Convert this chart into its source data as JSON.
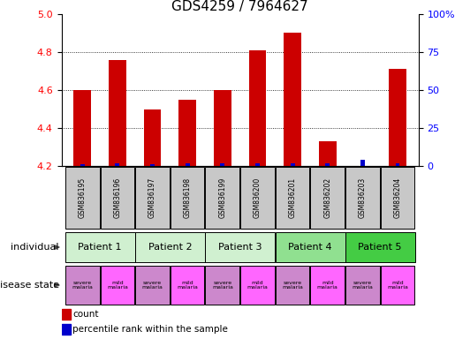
{
  "title": "GDS4259 / 7964627",
  "samples": [
    "GSM836195",
    "GSM836196",
    "GSM836197",
    "GSM836198",
    "GSM836199",
    "GSM836200",
    "GSM836201",
    "GSM836202",
    "GSM836203",
    "GSM836204"
  ],
  "count_values": [
    4.6,
    4.76,
    4.5,
    4.55,
    4.6,
    4.81,
    4.9,
    4.33,
    4.2,
    4.71
  ],
  "percentile_values": [
    1,
    2,
    1,
    2,
    2,
    2,
    2,
    2,
    4,
    2
  ],
  "ylim_left": [
    4.2,
    5.0
  ],
  "ylim_right": [
    0,
    100
  ],
  "yticks_left": [
    4.2,
    4.4,
    4.6,
    4.8,
    5.0
  ],
  "yticks_right": [
    0,
    25,
    50,
    75,
    100
  ],
  "ytick_labels_right": [
    "0",
    "25",
    "50",
    "75",
    "100%"
  ],
  "patients": [
    {
      "label": "Patient 1",
      "span": [
        0,
        2
      ],
      "color": "#d0f0d0"
    },
    {
      "label": "Patient 2",
      "span": [
        2,
        4
      ],
      "color": "#d0f0d0"
    },
    {
      "label": "Patient 3",
      "span": [
        4,
        6
      ],
      "color": "#d0f0d0"
    },
    {
      "label": "Patient 4",
      "span": [
        6,
        8
      ],
      "color": "#90e090"
    },
    {
      "label": "Patient 5",
      "span": [
        8,
        10
      ],
      "color": "#44cc44"
    }
  ],
  "disease_states": [
    {
      "label": "severe\nmalaria",
      "color": "#cc88cc"
    },
    {
      "label": "mild\nmalaria",
      "color": "#ff66ff"
    },
    {
      "label": "severe\nmalaria",
      "color": "#cc88cc"
    },
    {
      "label": "mild\nmalaria",
      "color": "#ff66ff"
    },
    {
      "label": "severe\nmalaria",
      "color": "#cc88cc"
    },
    {
      "label": "mild\nmalaria",
      "color": "#ff66ff"
    },
    {
      "label": "severe\nmalaria",
      "color": "#cc88cc"
    },
    {
      "label": "mild\nmalaria",
      "color": "#ff66ff"
    },
    {
      "label": "severe\nmalaria",
      "color": "#cc88cc"
    },
    {
      "label": "mild\nmalaria",
      "color": "#ff66ff"
    }
  ],
  "bar_color_red": "#cc0000",
  "bar_color_blue": "#0000cc",
  "bar_width": 0.5,
  "sample_box_color": "#c8c8c8",
  "individual_label": "individual",
  "disease_label": "disease state",
  "legend_count": "count",
  "legend_percentile": "percentile rank within the sample",
  "title_fontsize": 11,
  "tick_fontsize": 8,
  "label_fontsize": 9
}
